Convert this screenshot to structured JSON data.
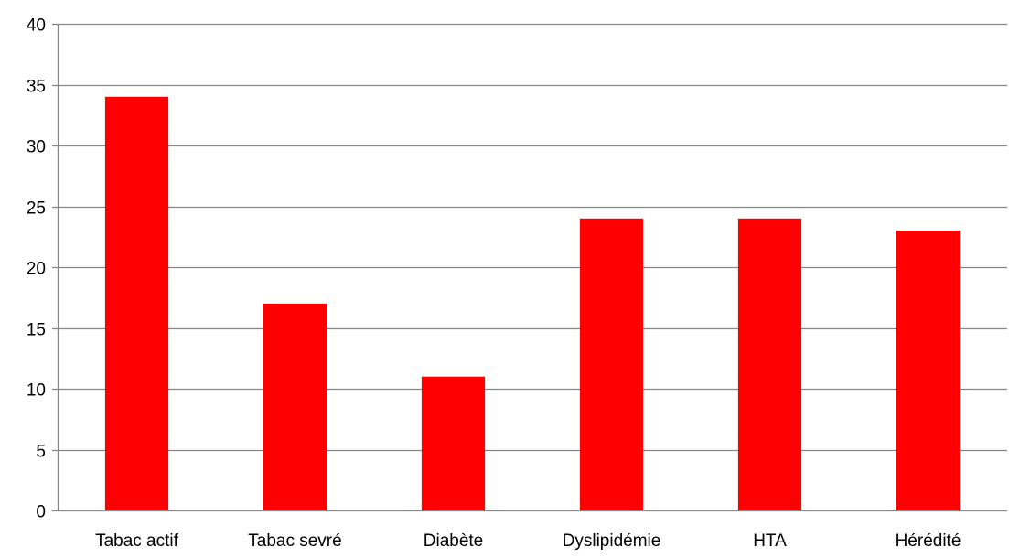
{
  "chart_data": {
    "type": "bar",
    "categories": [
      "Tabac actif",
      "Tabac sevré",
      "Diabète",
      "Dyslipidémie",
      "HTA",
      "Hérédité"
    ],
    "values": [
      34,
      17,
      11,
      24,
      24,
      23
    ],
    "ylim": [
      0,
      40
    ],
    "yticks": [
      0,
      5,
      10,
      15,
      20,
      25,
      30,
      35,
      40
    ],
    "ytick_labels": [
      "0",
      "5",
      "10",
      "15",
      "20",
      "25",
      "30",
      "35",
      "40"
    ],
    "grid": true,
    "legend": "none",
    "bar_color": "#ff0000",
    "gridline_color": "#868686",
    "title": "",
    "xlabel": "",
    "ylabel": ""
  }
}
